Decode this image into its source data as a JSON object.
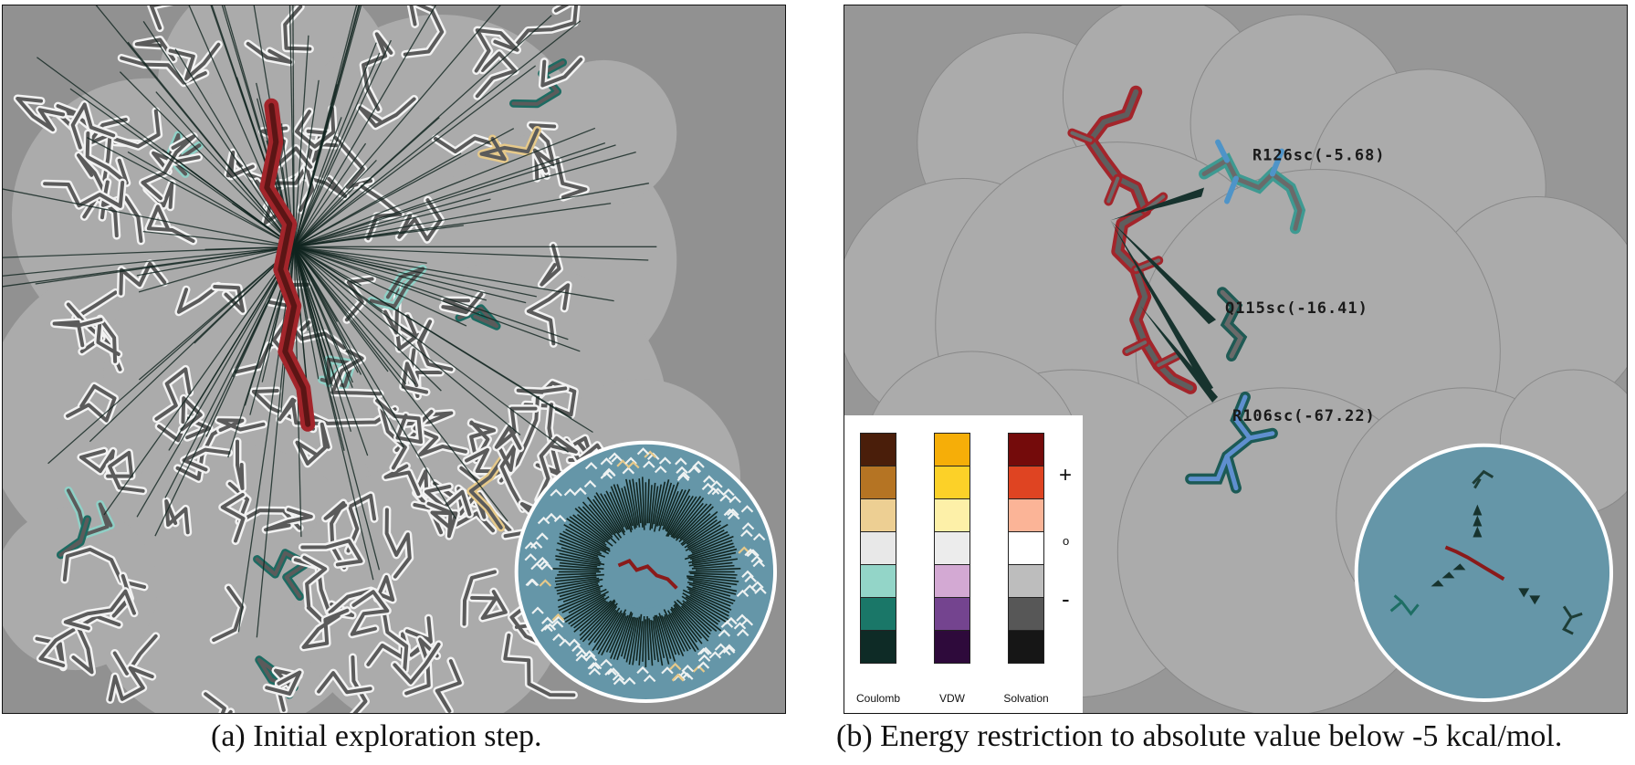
{
  "figure": {
    "panel_a": {
      "caption": "(a) Initial exploration step."
    },
    "panel_b": {
      "caption": "(b) Energy restriction to absolute value below -5 kcal/mol.",
      "residue_labels": [
        {
          "text": "R126sc(-5.68)"
        },
        {
          "text": "Q115sc(-16.41)"
        },
        {
          "text": "R106sc(-67.22)"
        }
      ],
      "legend": {
        "columns": [
          {
            "label": "Coulomb",
            "colors": [
              "#4a1e0a",
              "#b57423",
              "#edcf93",
              "#e8e8e8",
              "#93d5c8",
              "#1a7768",
              "#0e2b26"
            ]
          },
          {
            "label": "VDW",
            "colors": [
              "#f6ae08",
              "#fcd128",
              "#fdf0a8",
              "#ececec",
              "#d3a9d3",
              "#74448f",
              "#2e0a3b"
            ]
          },
          {
            "label": "Solvation",
            "colors": [
              "#740b0b",
              "#df4422",
              "#fbb497",
              "#ffffff",
              "#bdbdbd",
              "#575757",
              "#161616"
            ]
          }
        ],
        "signs": {
          "plus": "+",
          "zero": "o",
          "minus": "-"
        }
      }
    },
    "colors": {
      "background_dark": "#919191",
      "surface": "#ababab",
      "inset_circle": "#6495a8",
      "ligand_red": "#a3252b",
      "teal": "#1e6e64"
    }
  }
}
